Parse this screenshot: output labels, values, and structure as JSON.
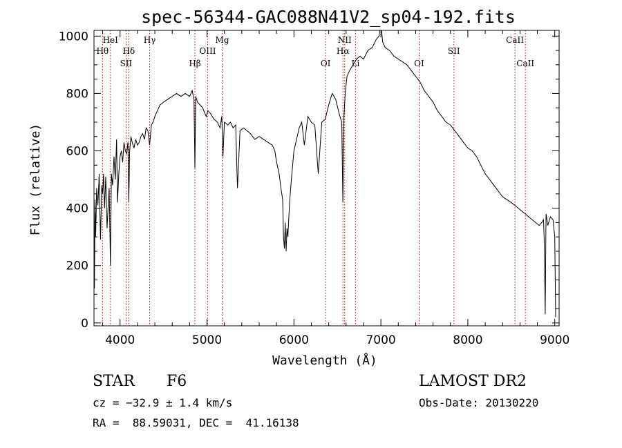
{
  "chart_data": {
    "type": "line",
    "title": "spec-56344-GAC088N41V2_sp04-192.fits",
    "xlabel": "Wavelength (Å)",
    "ylabel": "Flux (relative)",
    "xlim": [
      3700,
      9050
    ],
    "ylim": [
      -10,
      1020
    ],
    "xticks": [
      4000,
      5000,
      6000,
      7000,
      8000,
      9000
    ],
    "yticks": [
      0,
      200,
      400,
      600,
      800,
      1000
    ],
    "grid": false,
    "series": [
      {
        "color": "#000000",
        "x": [
          3700,
          3705,
          3712,
          3720,
          3730,
          3745,
          3760,
          3775,
          3790,
          3800,
          3810,
          3822,
          3835,
          3850,
          3865,
          3875,
          3889,
          3900,
          3915,
          3930,
          3945,
          3960,
          3970,
          3985,
          4000,
          4015,
          4030,
          4045,
          4060,
          4075,
          4090,
          4101,
          4110,
          4125,
          4140,
          4160,
          4180,
          4200,
          4220,
          4240,
          4260,
          4280,
          4300,
          4320,
          4340,
          4360,
          4380,
          4400,
          4430,
          4460,
          4500,
          4550,
          4600,
          4650,
          4700,
          4750,
          4800,
          4830,
          4850,
          4861,
          4870,
          4890,
          4920,
          4950,
          4990,
          5010,
          5040,
          5080,
          5120,
          5150,
          5170,
          5183,
          5200,
          5240,
          5270,
          5300,
          5330,
          5350,
          5380,
          5420,
          5460,
          5500,
          5550,
          5600,
          5650,
          5700,
          5750,
          5780,
          5800,
          5830,
          5850,
          5870,
          5880,
          5890,
          5900,
          5910,
          5920,
          5930,
          5950,
          5970,
          6000,
          6030,
          6060,
          6090,
          6120,
          6160,
          6200,
          6240,
          6280,
          6320,
          6360,
          6400,
          6440,
          6480,
          6520,
          6550,
          6563,
          6575,
          6590,
          6610,
          6640,
          6680,
          6720,
          6760,
          6800,
          6850,
          6900,
          6950,
          6980,
          7000,
          7020,
          7050,
          7100,
          7150,
          7200,
          7250,
          7300,
          7350,
          7400,
          7450,
          7500,
          7550,
          7600,
          7650,
          7700,
          7750,
          7800,
          7850,
          7900,
          7950,
          8000,
          8050,
          8100,
          8150,
          8200,
          8250,
          8300,
          8350,
          8400,
          8450,
          8498,
          8542,
          8580,
          8620,
          8662,
          8700,
          8740,
          8780,
          8820,
          8850,
          8870,
          8880,
          8890,
          8900,
          8920,
          8950,
          8980,
          9000,
          9010
        ],
        "y": [
          380,
          120,
          430,
          300,
          470,
          410,
          520,
          290,
          480,
          450,
          520,
          400,
          510,
          330,
          420,
          470,
          200,
          520,
          480,
          580,
          500,
          640,
          420,
          520,
          580,
          600,
          560,
          630,
          600,
          590,
          630,
          420,
          600,
          650,
          630,
          610,
          640,
          620,
          630,
          650,
          660,
          640,
          680,
          670,
          620,
          690,
          700,
          720,
          740,
          760,
          770,
          780,
          790,
          800,
          790,
          800,
          790,
          810,
          780,
          540,
          790,
          770,
          760,
          750,
          720,
          740,
          730,
          710,
          700,
          680,
          720,
          580,
          700,
          690,
          700,
          680,
          690,
          470,
          670,
          680,
          670,
          660,
          640,
          650,
          640,
          630,
          620,
          600,
          560,
          520,
          470,
          430,
          300,
          260,
          350,
          250,
          330,
          300,
          420,
          500,
          600,
          640,
          680,
          700,
          620,
          720,
          700,
          690,
          520,
          700,
          710,
          760,
          800,
          780,
          730,
          700,
          420,
          720,
          800,
          860,
          880,
          900,
          920,
          930,
          920,
          950,
          960,
          990,
          1000,
          1050,
          980,
          960,
          950,
          930,
          920,
          910,
          900,
          880,
          860,
          840,
          810,
          790,
          770,
          740,
          720,
          700,
          690,
          670,
          650,
          630,
          610,
          600,
          580,
          550,
          520,
          500,
          480,
          460,
          440,
          430,
          420,
          410,
          400,
          390,
          380,
          370,
          360,
          350,
          340,
          350,
          360,
          280,
          30,
          380,
          340,
          370,
          360,
          300,
          20
        ]
      }
    ],
    "annotations": [
      {
        "label": "Hθ",
        "x": 3798,
        "row": 2
      },
      {
        "label": "HeI",
        "x": 3889,
        "row": 1
      },
      {
        "label": "SII",
        "x": 4069,
        "row": 3
      },
      {
        "label": "Hδ",
        "x": 4101,
        "row": 2
      },
      {
        "label": "Hγ",
        "x": 4340,
        "row": 1
      },
      {
        "label": "Hβ",
        "x": 4861,
        "row": 3
      },
      {
        "label": "OIII",
        "x": 5007,
        "row": 2
      },
      {
        "label": "Mg",
        "x": 5175,
        "row": 1
      },
      {
        "label": "OI",
        "x": 6364,
        "row": 3
      },
      {
        "label": "NII",
        "x": 6584,
        "row": 1
      },
      {
        "label": "Hα",
        "x": 6563,
        "row": 2
      },
      {
        "label": "Li",
        "x": 6708,
        "row": 3
      },
      {
        "label": "OI",
        "x": 7440,
        "row": 3
      },
      {
        "label": "SII",
        "x": 7840,
        "row": 2
      },
      {
        "label": "CaII",
        "x": 8542,
        "row": 1
      },
      {
        "label": "CaII",
        "x": 8662,
        "row": 3
      }
    ],
    "marker_color": "#cc0000"
  },
  "info": {
    "class": "STAR",
    "subclass": "F6",
    "survey": "LAMOST DR2",
    "cz": "cz = −32.9 ± 1.4 km/s",
    "obs_date": "Obs-Date: 20130220",
    "coords": "RA =  88.59031, DEC =  41.16138"
  }
}
